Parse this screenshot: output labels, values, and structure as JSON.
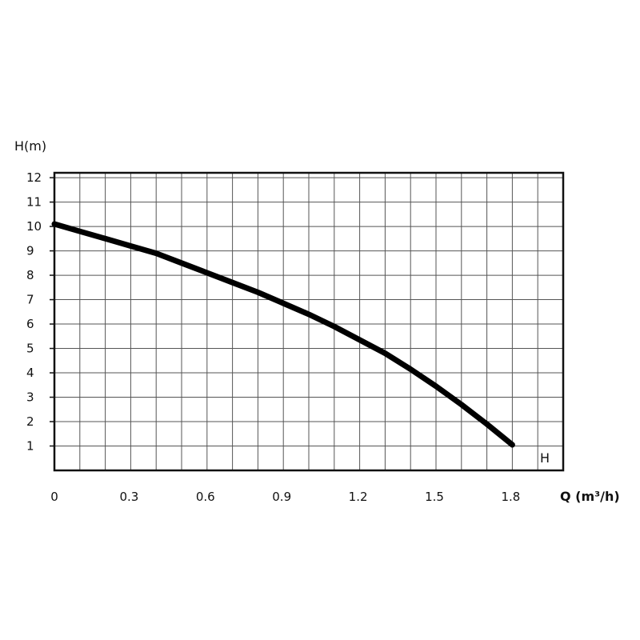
{
  "chart_data": {
    "type": "line",
    "ylabel": "H(m)",
    "xlabel": "Q (m³/h)",
    "xlim": [
      0,
      2.0
    ],
    "ylim": [
      0,
      12.2
    ],
    "x_ticks": [
      "0",
      "0.3",
      "0.6",
      "0.9",
      "1.2",
      "1.5",
      "1.8"
    ],
    "x_tick_values": [
      0,
      0.3,
      0.6,
      0.9,
      1.2,
      1.5,
      1.8
    ],
    "y_ticks": [
      "1",
      "2",
      "3",
      "4",
      "5",
      "6",
      "7",
      "8",
      "9",
      "10",
      "11",
      "12"
    ],
    "y_tick_values": [
      1,
      2,
      3,
      4,
      5,
      6,
      7,
      8,
      9,
      10,
      11,
      12
    ],
    "grid": true,
    "series": [
      {
        "name": "H",
        "color": "#000000",
        "x": [
          0,
          0.1,
          0.2,
          0.3,
          0.4,
          0.5,
          0.6,
          0.7,
          0.8,
          0.9,
          1.0,
          1.1,
          1.2,
          1.3,
          1.4,
          1.5,
          1.6,
          1.7,
          1.8
        ],
        "y": [
          10.1,
          9.8,
          9.5,
          9.2,
          8.9,
          8.5,
          8.1,
          7.7,
          7.3,
          6.85,
          6.4,
          5.9,
          5.35,
          4.8,
          4.15,
          3.45,
          2.7,
          1.9,
          1.05
        ]
      }
    ]
  }
}
